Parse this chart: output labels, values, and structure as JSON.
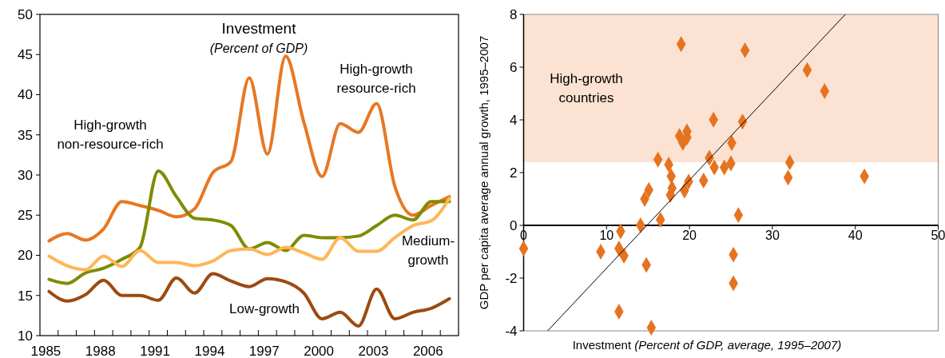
{
  "chart_data": [
    {
      "type": "line",
      "title": "Investment",
      "subtitle": "(Percent of GDP)",
      "categories": [
        "1985",
        null,
        null,
        "1988",
        null,
        null,
        "1991",
        null,
        null,
        "1994",
        null,
        null,
        "1997",
        null,
        null,
        "2000",
        null,
        null,
        "2003",
        null,
        null,
        "2006",
        null
      ],
      "ylim": [
        10,
        50
      ],
      "yticks": [
        10,
        15,
        20,
        25,
        30,
        35,
        40,
        45,
        50
      ],
      "grid": false,
      "series": [
        {
          "name": "High-growth resource-rich",
          "color": "#e87722",
          "values": [
            21.8,
            22.7,
            21.9,
            23.3,
            26.7,
            26.2,
            25.6,
            24.8,
            25.8,
            30.3,
            31.7,
            42.1,
            32.6,
            44.8,
            36.6,
            29.8,
            36.4,
            35.3,
            38.9,
            28.6,
            25.0,
            26.2,
            27.3
          ]
        },
        {
          "name": "High-growth non-resource-rich",
          "color": "#7f8c00",
          "values": [
            17.0,
            16.5,
            17.8,
            18.4,
            19.5,
            21.0,
            30.5,
            27.3,
            24.6,
            24.4,
            23.7,
            20.8,
            21.6,
            20.6,
            22.5,
            22.2,
            22.2,
            22.4,
            23.7,
            25.0,
            24.4,
            26.7,
            26.7
          ]
        },
        {
          "name": "Medium-growth",
          "color": "#ffb658",
          "values": [
            19.9,
            18.7,
            18.2,
            19.9,
            18.6,
            20.6,
            19.1,
            19.1,
            18.7,
            19.3,
            20.6,
            20.8,
            20.1,
            21.0,
            20.3,
            19.5,
            22.2,
            20.5,
            20.5,
            22.2,
            23.7,
            24.3,
            27.1
          ]
        },
        {
          "name": "Low-growth",
          "color": "#9c4a10",
          "values": [
            15.5,
            14.3,
            15.1,
            16.9,
            15.0,
            15.0,
            14.4,
            17.2,
            15.3,
            17.7,
            16.8,
            16.1,
            17.1,
            16.7,
            15.3,
            12.1,
            12.9,
            11.2,
            15.8,
            12.1,
            12.9,
            13.4,
            14.6
          ]
        }
      ]
    },
    {
      "type": "scatter",
      "xlabel": "Investment (Percent of GDP, average, 1995–2007)",
      "ylabel": "GDP per capita average annual growth, 1995–2007",
      "xlim": [
        0,
        50
      ],
      "xticks": [
        0,
        10,
        20,
        30,
        40,
        50
      ],
      "ylim": [
        -4,
        8
      ],
      "yticks": [
        -4,
        -2,
        0,
        2,
        4,
        6,
        8
      ],
      "grid": false,
      "bands": [
        {
          "axis": "y",
          "from": 2.4,
          "to": 8,
          "label": "High-growth countries",
          "color": "#fbe2d2"
        }
      ],
      "series": [
        {
          "type": "scatter",
          "marker": "diamond",
          "color": "#e5731f",
          "x": [
            19.0,
            26.7,
            34.2,
            36.3,
            22.9,
            26.4,
            19.7,
            18.8,
            19.7,
            19.2,
            25.1,
            16.2,
            22.4,
            17.5,
            25.0,
            32.1,
            23.0,
            24.2,
            17.8,
            31.9,
            41.1,
            19.9,
            21.7,
            17.9,
            19.4,
            15.1,
            14.6,
            17.7,
            16.5,
            25.9,
            14.1,
            11.7,
            0,
            11.5,
            9.3,
            12.1,
            25.3,
            14.8,
            25.3,
            11.5,
            15.4
          ],
          "values": [
            6.87,
            6.64,
            5.89,
            5.09,
            4.01,
            3.93,
            3.56,
            3.39,
            3.33,
            3.13,
            3.12,
            2.49,
            2.56,
            2.3,
            2.35,
            2.39,
            2.2,
            2.2,
            1.86,
            1.81,
            1.86,
            1.66,
            1.7,
            1.41,
            1.32,
            1.34,
            1.0,
            1.15,
            0.21,
            0.39,
            0.0,
            -0.23,
            -0.88,
            -0.88,
            -1.0,
            -1.15,
            -1.11,
            -1.5,
            -2.2,
            -3.27,
            -3.88
          ]
        },
        {
          "type": "line",
          "color": "#000000",
          "x": [
            2.9,
            38.8
          ],
          "values": [
            -4,
            8
          ]
        }
      ]
    }
  ]
}
